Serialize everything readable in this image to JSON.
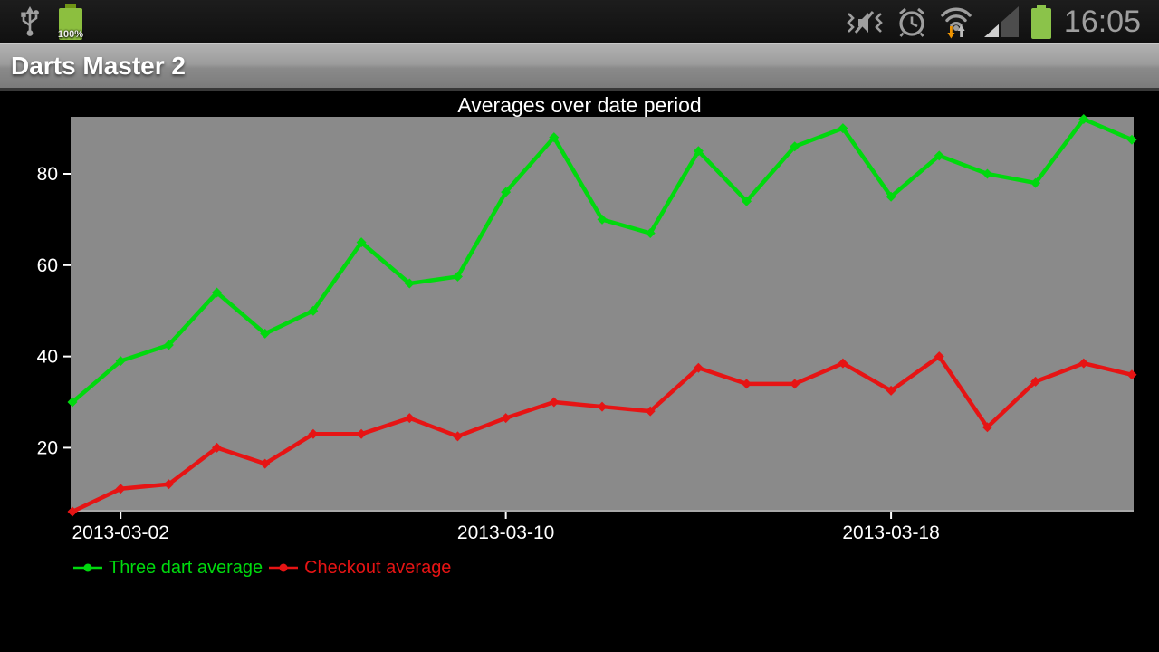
{
  "status_bar": {
    "time": "16:05",
    "battery_label": "100%",
    "icon_color": "#9e9e9e",
    "battery_color": "#8bc34a",
    "arrow_down_color": "#ef9400"
  },
  "app_bar": {
    "title": "Darts Master 2"
  },
  "chart_data": {
    "type": "line",
    "title": "Averages over date period",
    "xlabel": "",
    "ylabel": "",
    "grid": false,
    "plot_bg": "#8a8a8a",
    "axis_text_color": "#ffffff",
    "legend_position": "bottom",
    "ylim": [
      6,
      92.5
    ],
    "y_ticks": [
      20,
      40,
      60,
      80
    ],
    "x_ticks": [
      {
        "index": 1,
        "label": "2013-03-02"
      },
      {
        "index": 9,
        "label": "2013-03-10"
      },
      {
        "index": 17,
        "label": "2013-03-18"
      }
    ],
    "x": [
      "2013-03-01",
      "2013-03-02",
      "2013-03-03",
      "2013-03-04",
      "2013-03-05",
      "2013-03-06",
      "2013-03-07",
      "2013-03-08",
      "2013-03-09",
      "2013-03-10",
      "2013-03-11",
      "2013-03-12",
      "2013-03-13",
      "2013-03-14",
      "2013-03-15",
      "2013-03-16",
      "2013-03-17",
      "2013-03-18",
      "2013-03-19",
      "2013-03-20",
      "2013-03-21",
      "2013-03-22",
      "2013-03-23"
    ],
    "series": [
      {
        "name": "Three dart average",
        "color": "#00d90e",
        "values": [
          30,
          39,
          42.5,
          54,
          45,
          50,
          65,
          56,
          57.5,
          76,
          88,
          70,
          67,
          85,
          74,
          86,
          90,
          75,
          84,
          80,
          78,
          92,
          87.5
        ]
      },
      {
        "name": "Checkout average",
        "color": "#e61414",
        "values": [
          6,
          11,
          12,
          20,
          16.5,
          23,
          23,
          26.5,
          22.5,
          26.5,
          30,
          29,
          28,
          37.5,
          34,
          34,
          38.5,
          32.5,
          40,
          24.5,
          34.5,
          38.5,
          36
        ]
      }
    ]
  }
}
